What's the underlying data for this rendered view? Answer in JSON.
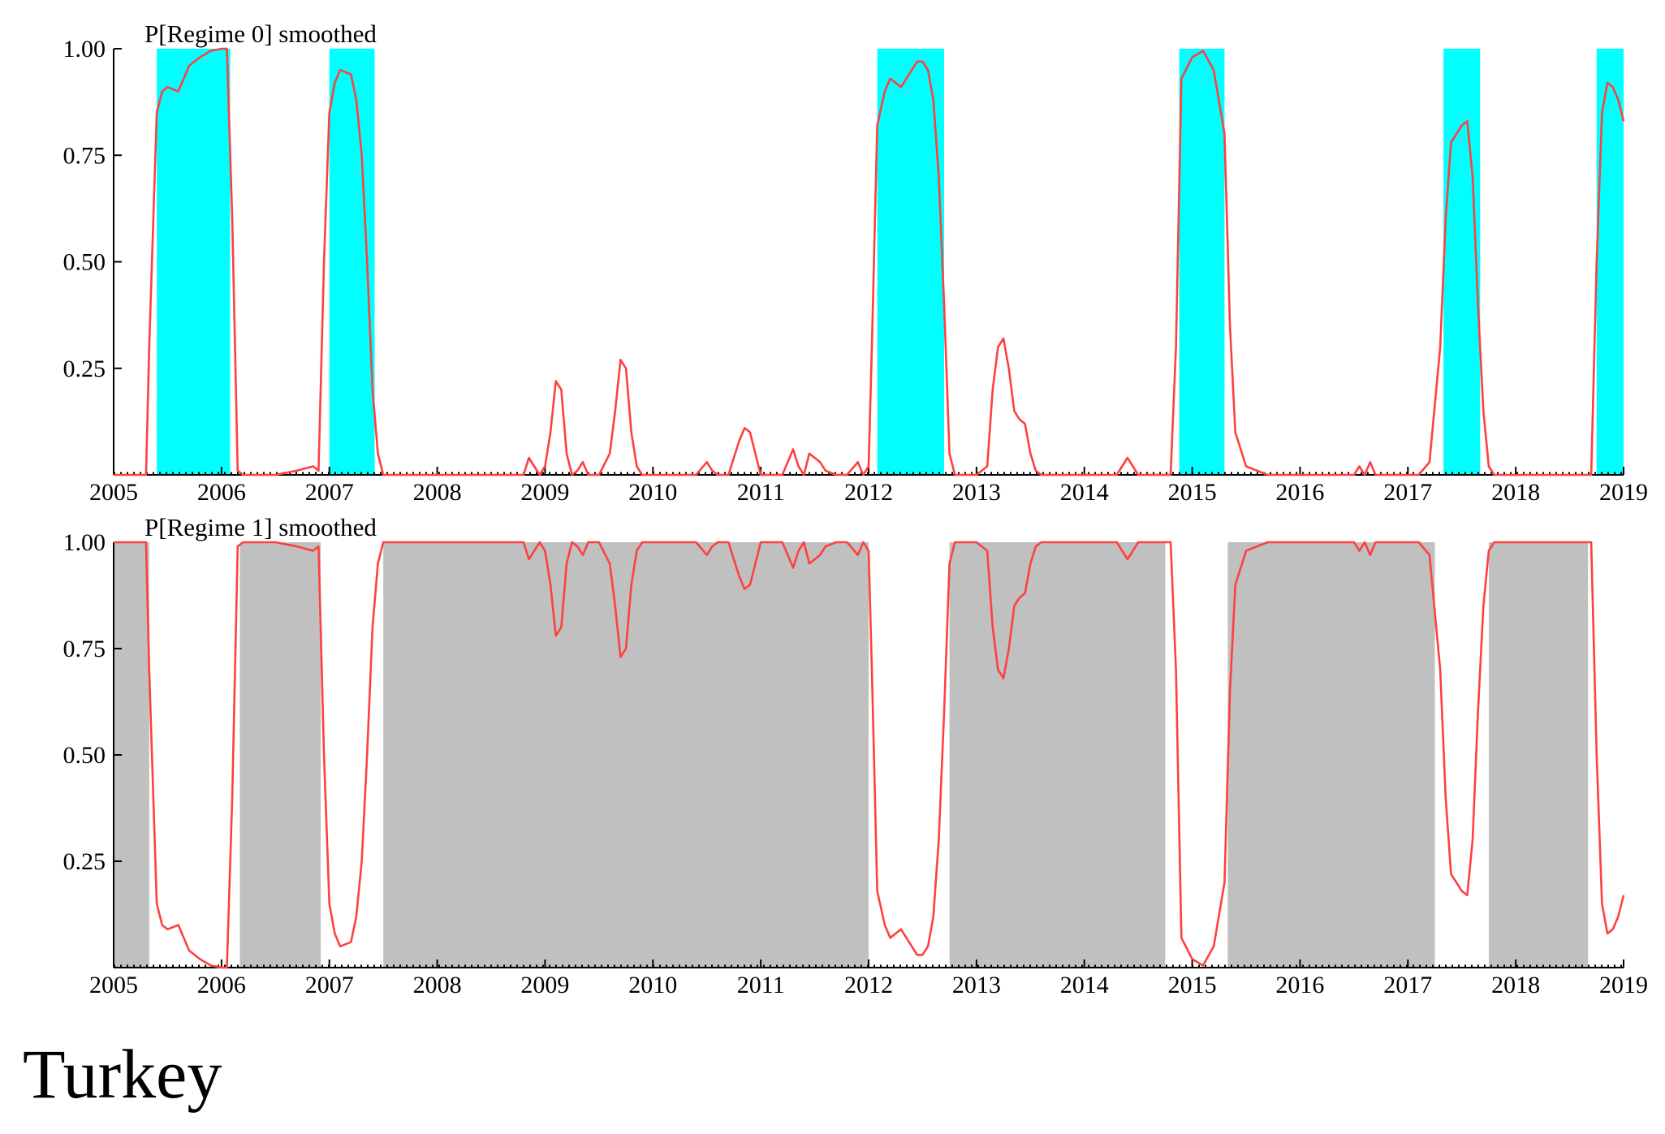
{
  "country_label": "Turkey",
  "chart_data": [
    {
      "type": "line",
      "title": "P[Regime 0] smoothed",
      "xlim": [
        2005,
        2019
      ],
      "ylim": [
        0,
        1
      ],
      "x_ticks": [
        2005,
        2006,
        2007,
        2008,
        2009,
        2010,
        2011,
        2012,
        2013,
        2014,
        2015,
        2016,
        2017,
        2018,
        2019
      ],
      "y_ticks": [
        0.25,
        0.5,
        0.75,
        1.0
      ],
      "y_tick_labels": [
        "0.25",
        "0.50",
        "0.75",
        "1.00"
      ],
      "line_color": "#ff4040",
      "shade_color": "#00ffff",
      "shaded_regions": [
        [
          2005.4,
          2006.08
        ],
        [
          2007.0,
          2007.42
        ],
        [
          2012.08,
          2012.7
        ],
        [
          2014.88,
          2015.3
        ],
        [
          2017.33,
          2017.67
        ],
        [
          2018.75,
          2019.0
        ]
      ],
      "series": [
        {
          "x": [
            2005.0,
            2005.3,
            2005.33,
            2005.4,
            2005.45,
            2005.5,
            2005.6,
            2005.7,
            2005.8,
            2005.9,
            2006.0,
            2006.05,
            2006.1,
            2006.15,
            2006.2,
            2006.5,
            2006.7,
            2006.85,
            2006.9,
            2006.95,
            2007.0,
            2007.05,
            2007.1,
            2007.2,
            2007.25,
            2007.3,
            2007.35,
            2007.4,
            2007.45,
            2007.5,
            2007.55,
            2007.6,
            2008.0,
            2008.8,
            2008.85,
            2008.9,
            2008.95,
            2009.0,
            2009.05,
            2009.1,
            2009.15,
            2009.2,
            2009.25,
            2009.3,
            2009.35,
            2009.4,
            2009.45,
            2009.5,
            2009.6,
            2009.65,
            2009.7,
            2009.75,
            2009.8,
            2009.85,
            2009.9,
            2009.95,
            2010.0,
            2010.4,
            2010.5,
            2010.55,
            2010.6,
            2010.7,
            2010.8,
            2010.85,
            2010.9,
            2010.95,
            2011.0,
            2011.1,
            2011.2,
            2011.3,
            2011.35,
            2011.4,
            2011.45,
            2011.5,
            2011.55,
            2011.6,
            2011.7,
            2011.8,
            2011.9,
            2011.95,
            2012.0,
            2012.03,
            2012.08,
            2012.15,
            2012.2,
            2012.3,
            2012.4,
            2012.45,
            2012.5,
            2012.55,
            2012.6,
            2012.65,
            2012.7,
            2012.75,
            2012.8,
            2013.0,
            2013.1,
            2013.15,
            2013.2,
            2013.25,
            2013.3,
            2013.35,
            2013.4,
            2013.45,
            2013.5,
            2013.55,
            2013.6,
            2014.3,
            2014.35,
            2014.4,
            2014.5,
            2014.8,
            2014.85,
            2014.9,
            2015.0,
            2015.1,
            2015.2,
            2015.3,
            2015.35,
            2015.4,
            2015.5,
            2015.7,
            2016.0,
            2016.4,
            2016.5,
            2016.55,
            2016.6,
            2016.65,
            2016.7,
            2016.8,
            2017.1,
            2017.2,
            2017.3,
            2017.35,
            2017.4,
            2017.5,
            2017.55,
            2017.6,
            2017.65,
            2017.7,
            2017.75,
            2017.8,
            2018.7,
            2018.75,
            2018.8,
            2018.85,
            2018.9,
            2018.95,
            2019.0
          ],
          "y": [
            0.0,
            0.0,
            0.3,
            0.85,
            0.9,
            0.91,
            0.9,
            0.96,
            0.98,
            0.995,
            1.0,
            1.0,
            0.6,
            0.01,
            0.0,
            0.0,
            0.01,
            0.02,
            0.01,
            0.5,
            0.85,
            0.92,
            0.95,
            0.94,
            0.88,
            0.75,
            0.5,
            0.2,
            0.05,
            0.0,
            0.0,
            0.0,
            0.0,
            0.0,
            0.04,
            0.02,
            0.0,
            0.02,
            0.1,
            0.22,
            0.2,
            0.05,
            0.0,
            0.01,
            0.03,
            0.0,
            0.0,
            0.0,
            0.05,
            0.15,
            0.27,
            0.25,
            0.1,
            0.02,
            0.0,
            0.0,
            0.0,
            0.0,
            0.03,
            0.01,
            0.0,
            0.0,
            0.08,
            0.11,
            0.1,
            0.05,
            0.0,
            0.0,
            0.0,
            0.06,
            0.02,
            0.0,
            0.05,
            0.04,
            0.03,
            0.01,
            0.0,
            0.0,
            0.03,
            0.0,
            0.02,
            0.3,
            0.82,
            0.9,
            0.93,
            0.91,
            0.95,
            0.97,
            0.97,
            0.95,
            0.88,
            0.7,
            0.4,
            0.05,
            0.0,
            0.0,
            0.02,
            0.2,
            0.3,
            0.32,
            0.25,
            0.15,
            0.13,
            0.12,
            0.05,
            0.01,
            0.0,
            0.0,
            0.02,
            0.04,
            0.0,
            0.0,
            0.3,
            0.93,
            0.98,
            0.995,
            0.95,
            0.8,
            0.35,
            0.1,
            0.02,
            0.0,
            0.0,
            0.0,
            0.0,
            0.02,
            0.0,
            0.03,
            0.0,
            0.0,
            0.0,
            0.03,
            0.3,
            0.6,
            0.78,
            0.82,
            0.83,
            0.7,
            0.4,
            0.15,
            0.02,
            0.0,
            0.0,
            0.5,
            0.85,
            0.92,
            0.91,
            0.88,
            0.83
          ]
        }
      ]
    },
    {
      "type": "line",
      "title": "P[Regime 1] smoothed",
      "xlim": [
        2005,
        2019
      ],
      "ylim": [
        0,
        1
      ],
      "x_ticks": [
        2005,
        2006,
        2007,
        2008,
        2009,
        2010,
        2011,
        2012,
        2013,
        2014,
        2015,
        2016,
        2017,
        2018,
        2019
      ],
      "y_ticks": [
        0.25,
        0.5,
        0.75,
        1.0
      ],
      "y_tick_labels": [
        "0.25",
        "0.50",
        "0.75",
        "1.00"
      ],
      "line_color": "#ff4040",
      "shade_color": "#c0c0c0",
      "shaded_regions": [
        [
          2005.0,
          2005.33
        ],
        [
          2006.17,
          2006.92
        ],
        [
          2007.5,
          2012.0
        ],
        [
          2012.75,
          2014.75
        ],
        [
          2015.33,
          2017.25
        ],
        [
          2017.75,
          2018.67
        ]
      ],
      "series": [
        {
          "x": [
            2005.0,
            2005.3,
            2005.33,
            2005.4,
            2005.45,
            2005.5,
            2005.6,
            2005.7,
            2005.8,
            2005.9,
            2006.0,
            2006.05,
            2006.1,
            2006.15,
            2006.2,
            2006.5,
            2006.7,
            2006.85,
            2006.9,
            2006.95,
            2007.0,
            2007.05,
            2007.1,
            2007.2,
            2007.25,
            2007.3,
            2007.35,
            2007.4,
            2007.45,
            2007.5,
            2007.55,
            2007.6,
            2008.0,
            2008.8,
            2008.85,
            2008.9,
            2008.95,
            2009.0,
            2009.05,
            2009.1,
            2009.15,
            2009.2,
            2009.25,
            2009.3,
            2009.35,
            2009.4,
            2009.45,
            2009.5,
            2009.6,
            2009.65,
            2009.7,
            2009.75,
            2009.8,
            2009.85,
            2009.9,
            2009.95,
            2010.0,
            2010.4,
            2010.5,
            2010.55,
            2010.6,
            2010.7,
            2010.8,
            2010.85,
            2010.9,
            2010.95,
            2011.0,
            2011.1,
            2011.2,
            2011.3,
            2011.35,
            2011.4,
            2011.45,
            2011.5,
            2011.55,
            2011.6,
            2011.7,
            2011.8,
            2011.9,
            2011.95,
            2012.0,
            2012.03,
            2012.08,
            2012.15,
            2012.2,
            2012.3,
            2012.4,
            2012.45,
            2012.5,
            2012.55,
            2012.6,
            2012.65,
            2012.7,
            2012.75,
            2012.8,
            2013.0,
            2013.1,
            2013.15,
            2013.2,
            2013.25,
            2013.3,
            2013.35,
            2013.4,
            2013.45,
            2013.5,
            2013.55,
            2013.6,
            2014.3,
            2014.35,
            2014.4,
            2014.5,
            2014.8,
            2014.85,
            2014.9,
            2015.0,
            2015.1,
            2015.2,
            2015.3,
            2015.35,
            2015.4,
            2015.5,
            2015.7,
            2016.0,
            2016.4,
            2016.5,
            2016.55,
            2016.6,
            2016.65,
            2016.7,
            2016.8,
            2017.1,
            2017.2,
            2017.3,
            2017.35,
            2017.4,
            2017.5,
            2017.55,
            2017.6,
            2017.65,
            2017.7,
            2017.75,
            2017.8,
            2018.7,
            2018.75,
            2018.8,
            2018.85,
            2018.9,
            2018.95,
            2019.0
          ],
          "y": [
            1.0,
            1.0,
            0.7,
            0.15,
            0.1,
            0.09,
            0.1,
            0.04,
            0.02,
            0.005,
            0.0,
            0.0,
            0.4,
            0.99,
            1.0,
            1.0,
            0.99,
            0.98,
            0.99,
            0.5,
            0.15,
            0.08,
            0.05,
            0.06,
            0.12,
            0.25,
            0.5,
            0.8,
            0.95,
            1.0,
            1.0,
            1.0,
            1.0,
            1.0,
            0.96,
            0.98,
            1.0,
            0.98,
            0.9,
            0.78,
            0.8,
            0.95,
            1.0,
            0.99,
            0.97,
            1.0,
            1.0,
            1.0,
            0.95,
            0.85,
            0.73,
            0.75,
            0.9,
            0.98,
            1.0,
            1.0,
            1.0,
            1.0,
            0.97,
            0.99,
            1.0,
            1.0,
            0.92,
            0.89,
            0.9,
            0.95,
            1.0,
            1.0,
            1.0,
            0.94,
            0.98,
            1.0,
            0.95,
            0.96,
            0.97,
            0.99,
            1.0,
            1.0,
            0.97,
            1.0,
            0.98,
            0.7,
            0.18,
            0.1,
            0.07,
            0.09,
            0.05,
            0.03,
            0.03,
            0.05,
            0.12,
            0.3,
            0.6,
            0.95,
            1.0,
            1.0,
            0.98,
            0.8,
            0.7,
            0.68,
            0.75,
            0.85,
            0.87,
            0.88,
            0.95,
            0.99,
            1.0,
            1.0,
            0.98,
            0.96,
            1.0,
            1.0,
            0.7,
            0.07,
            0.02,
            0.005,
            0.05,
            0.2,
            0.65,
            0.9,
            0.98,
            1.0,
            1.0,
            1.0,
            1.0,
            0.98,
            1.0,
            0.97,
            1.0,
            1.0,
            1.0,
            0.97,
            0.7,
            0.4,
            0.22,
            0.18,
            0.17,
            0.3,
            0.6,
            0.85,
            0.98,
            1.0,
            1.0,
            0.5,
            0.15,
            0.08,
            0.09,
            0.12,
            0.17
          ]
        }
      ]
    }
  ]
}
